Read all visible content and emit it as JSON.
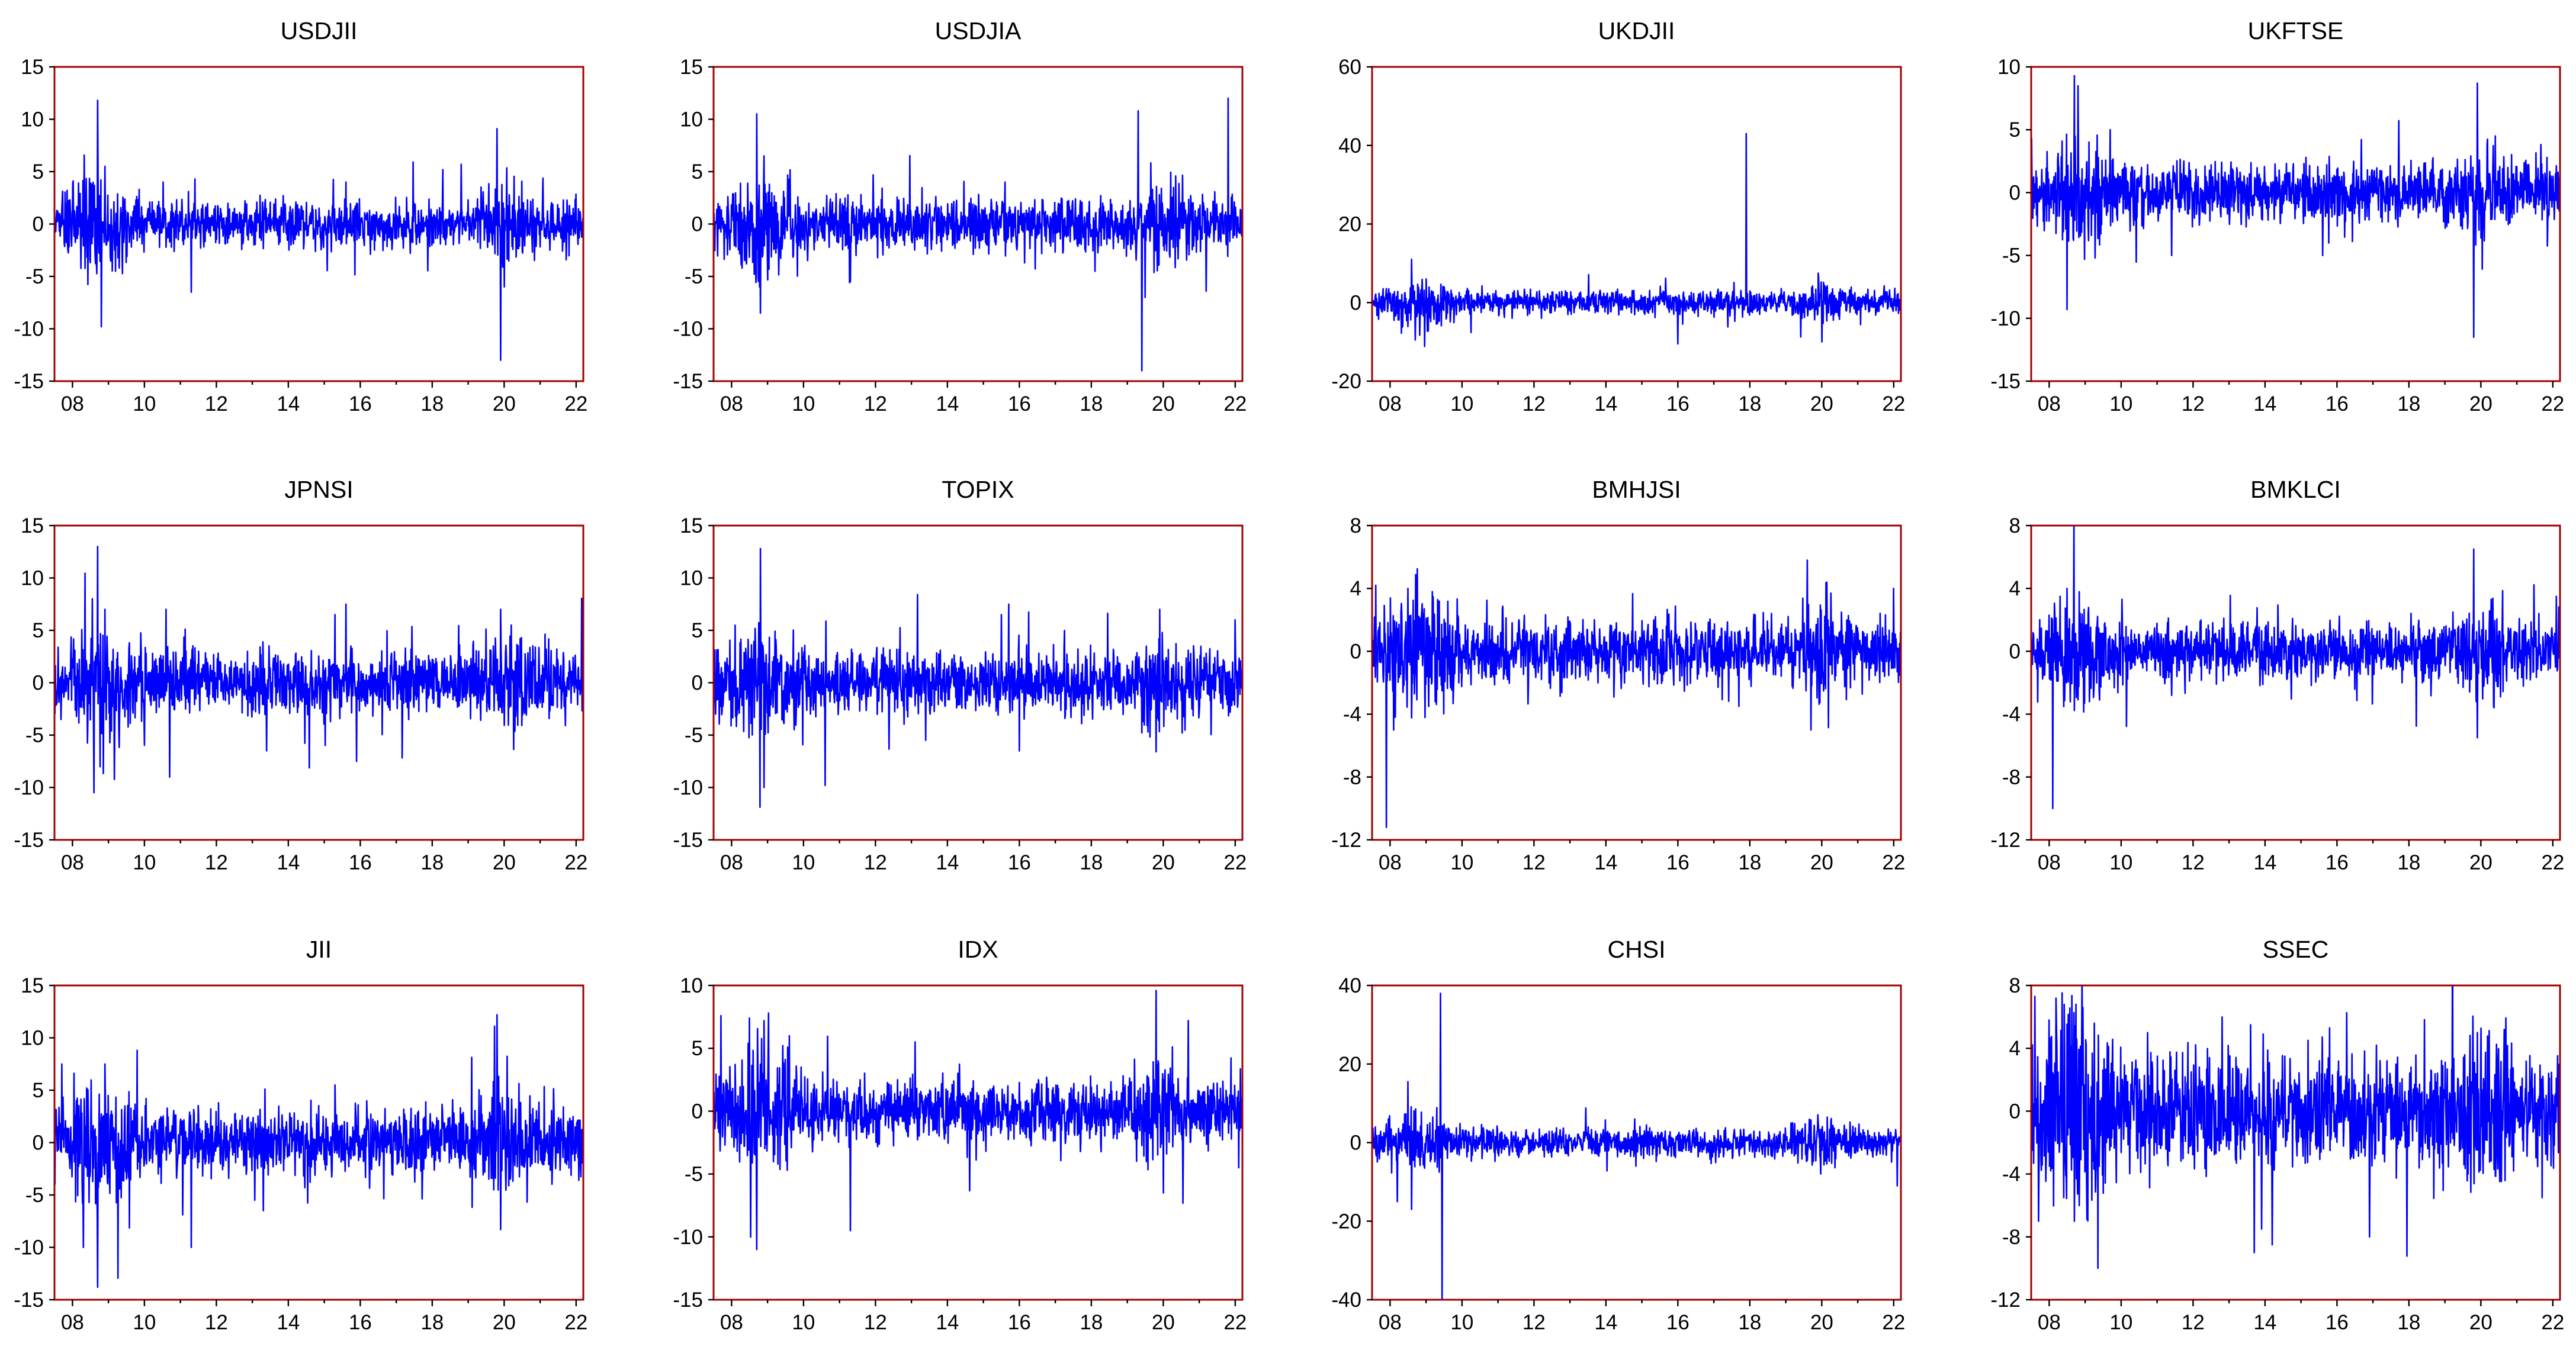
{
  "figure": {
    "series_color": "#0000ff",
    "frame_color": "#a00000",
    "x_ticks": [
      "08",
      "10",
      "12",
      "14",
      "16",
      "18",
      "20",
      "22"
    ]
  },
  "chart_data": [
    {
      "type": "line",
      "title": "USDJII",
      "ylim": [
        -15,
        15
      ],
      "yticks": [
        -15,
        -10,
        -5,
        0,
        5,
        10,
        15
      ],
      "xlim": [
        2007.5,
        2022.2
      ],
      "base_amplitude": 1.0,
      "overall_max": 11.8,
      "overall_min": -13.0,
      "spikes": [
        [
          2008.7,
          11.8
        ],
        [
          2008.8,
          -9.8
        ],
        [
          2008.9,
          5.5
        ],
        [
          2009.2,
          -4.5
        ],
        [
          2011.3,
          -6.5
        ],
        [
          2011.4,
          4.3
        ],
        [
          2015.6,
          4.0
        ],
        [
          2018.3,
          5.2
        ],
        [
          2019.8,
          9.1
        ],
        [
          2019.9,
          -13.0
        ],
        [
          2020.0,
          -6.0
        ]
      ],
      "x": [
        2008,
        2010,
        2012,
        2014,
        2016,
        2018,
        2020,
        2022
      ]
    },
    {
      "type": "line",
      "title": "USDJIA",
      "ylim": [
        -15,
        15
      ],
      "yticks": [
        -15,
        -10,
        -5,
        0,
        5,
        10,
        15
      ],
      "xlim": [
        2007.5,
        2022.2
      ],
      "base_amplitude": 1.1,
      "overall_max": 12.0,
      "overall_min": -14.0,
      "spikes": [
        [
          2008.7,
          10.5
        ],
        [
          2008.8,
          -8.5
        ],
        [
          2008.9,
          6.5
        ],
        [
          2011.3,
          -5.5
        ],
        [
          2015.6,
          4.0
        ],
        [
          2018.1,
          -4.5
        ],
        [
          2019.3,
          10.8
        ],
        [
          2019.4,
          -14.0
        ],
        [
          2019.5,
          -7.0
        ],
        [
          2021.8,
          12.0
        ]
      ],
      "x": [
        2008,
        2010,
        2012,
        2014,
        2016,
        2018,
        2020,
        2022
      ]
    },
    {
      "type": "line",
      "title": "UKDJII",
      "ylim": [
        -20,
        60
      ],
      "yticks": [
        -20,
        0,
        20,
        40,
        60
      ],
      "xlim": [
        2007.5,
        2022.2
      ],
      "base_amplitude": 1.3,
      "overall_max": 43.0,
      "overall_min": -10.5,
      "spikes": [
        [
          2008.6,
          11.0
        ],
        [
          2008.7,
          -9.5
        ],
        [
          2009.0,
          6.0
        ],
        [
          2016.0,
          -10.5
        ],
        [
          2017.9,
          43.0
        ],
        [
          2019.9,
          7.5
        ],
        [
          2020.0,
          -10.0
        ]
      ],
      "x": [
        2008,
        2010,
        2012,
        2014,
        2016,
        2018,
        2020,
        2022
      ]
    },
    {
      "type": "line",
      "title": "UKFTSE",
      "ylim": [
        -15,
        10
      ],
      "yticks": [
        -15,
        -10,
        -5,
        0,
        5,
        10
      ],
      "xlim": [
        2007.5,
        2022.2
      ],
      "base_amplitude": 1.0,
      "overall_max": 9.3,
      "overall_min": -11.5,
      "spikes": [
        [
          2008.5,
          -9.3
        ],
        [
          2008.7,
          9.3
        ],
        [
          2008.8,
          8.5
        ],
        [
          2009.7,
          5.0
        ],
        [
          2011.4,
          -5.0
        ],
        [
          2015.6,
          -5.0
        ],
        [
          2019.8,
          -11.5
        ],
        [
          2019.9,
          8.7
        ],
        [
          2020.4,
          4.5
        ]
      ],
      "x": [
        2008,
        2010,
        2012,
        2014,
        2016,
        2018,
        2020,
        2022
      ]
    },
    {
      "type": "line",
      "title": "JPNSI",
      "ylim": [
        -15,
        15
      ],
      "yticks": [
        -15,
        -10,
        -5,
        0,
        5,
        10,
        15
      ],
      "xlim": [
        2007.5,
        2022.2
      ],
      "base_amplitude": 1.3,
      "overall_max": 13.0,
      "overall_min": -10.5,
      "spikes": [
        [
          2008.6,
          -10.5
        ],
        [
          2008.7,
          13.0
        ],
        [
          2008.9,
          7.0
        ],
        [
          2010.6,
          7.0
        ],
        [
          2010.7,
          -9.0
        ],
        [
          2013.4,
          -6.5
        ],
        [
          2015.3,
          6.5
        ],
        [
          2015.6,
          7.5
        ],
        [
          2015.9,
          -7.5
        ],
        [
          2019.9,
          7.0
        ],
        [
          2020.2,
          5.5
        ]
      ],
      "x": [
        2008,
        2010,
        2012,
        2014,
        2016,
        2018,
        2020,
        2022
      ]
    },
    {
      "type": "line",
      "title": "TOPIX",
      "ylim": [
        -15,
        15
      ],
      "yticks": [
        -15,
        -10,
        -5,
        0,
        5,
        10,
        15
      ],
      "xlim": [
        2007.5,
        2022.2
      ],
      "base_amplitude": 1.3,
      "overall_max": 12.8,
      "overall_min": -10.0,
      "spikes": [
        [
          2008.8,
          12.8
        ],
        [
          2008.9,
          -10.0
        ],
        [
          2010.6,
          -9.8
        ],
        [
          2013.4,
          -5.5
        ],
        [
          2015.5,
          6.5
        ],
        [
          2015.7,
          7.5
        ],
        [
          2016.0,
          -6.5
        ],
        [
          2019.9,
          7.0
        ],
        [
          2022.0,
          6.0
        ]
      ],
      "x": [
        2008,
        2010,
        2012,
        2014,
        2016,
        2018,
        2020,
        2022
      ]
    },
    {
      "type": "line",
      "title": "BMHJSI",
      "ylim": [
        -12,
        8
      ],
      "yticks": [
        -12,
        -8,
        -4,
        0,
        4,
        8
      ],
      "xlim": [
        2007.5,
        2022.2
      ],
      "base_amplitude": 0.9,
      "overall_max": 5.8,
      "overall_min": -11.2,
      "spikes": [
        [
          2007.6,
          4.2
        ],
        [
          2007.9,
          -11.2
        ],
        [
          2008.1,
          -5.0
        ],
        [
          2008.5,
          4.0
        ],
        [
          2017.7,
          -3.5
        ],
        [
          2019.6,
          5.8
        ],
        [
          2019.7,
          -5.0
        ],
        [
          2022.0,
          4.0
        ]
      ],
      "x": [
        2008,
        2010,
        2012,
        2014,
        2016,
        2018,
        2020,
        2022
      ]
    },
    {
      "type": "line",
      "title": "BMKLCI",
      "ylim": [
        -12,
        8
      ],
      "yticks": [
        -12,
        -8,
        -4,
        0,
        4,
        8
      ],
      "xlim": [
        2007.5,
        2022.2
      ],
      "base_amplitude": 0.8,
      "overall_max": 6.5,
      "overall_min": -10.0,
      "spikes": [
        [
          2008.1,
          -10.0
        ],
        [
          2008.3,
          3.5
        ],
        [
          2008.5,
          4.0
        ],
        [
          2011.4,
          -2.8
        ],
        [
          2019.8,
          6.5
        ],
        [
          2019.9,
          -5.5
        ],
        [
          2022.1,
          3.5
        ]
      ],
      "x": [
        2008,
        2010,
        2012,
        2014,
        2016,
        2018,
        2020,
        2022
      ]
    },
    {
      "type": "line",
      "title": "JII",
      "ylim": [
        -15,
        15
      ],
      "yticks": [
        -15,
        -10,
        -5,
        0,
        5,
        10,
        15
      ],
      "xlim": [
        2007.5,
        2022.2
      ],
      "base_amplitude": 1.4,
      "overall_max": 12.2,
      "overall_min": -13.8,
      "spikes": [
        [
          2007.7,
          7.5
        ],
        [
          2008.3,
          -10.0
        ],
        [
          2008.7,
          -13.8
        ],
        [
          2008.9,
          7.5
        ],
        [
          2009.8,
          8.8
        ],
        [
          2011.3,
          -10.0
        ],
        [
          2013.3,
          -6.5
        ],
        [
          2015.3,
          5.5
        ],
        [
          2019.8,
          12.2
        ],
        [
          2019.9,
          -8.3
        ]
      ],
      "x": [
        2008,
        2010,
        2012,
        2014,
        2016,
        2018,
        2020,
        2022
      ]
    },
    {
      "type": "line",
      "title": "IDX",
      "ylim": [
        -15,
        10
      ],
      "yticks": [
        -15,
        -10,
        -5,
        0,
        5,
        10
      ],
      "xlim": [
        2007.5,
        2022.2
      ],
      "base_amplitude": 1.1,
      "overall_max": 9.6,
      "overall_min": -11.0,
      "spikes": [
        [
          2007.7,
          7.6
        ],
        [
          2008.5,
          7.4
        ],
        [
          2008.7,
          -11.0
        ],
        [
          2008.9,
          7.2
        ],
        [
          2009.6,
          6.0
        ],
        [
          2011.3,
          -9.5
        ],
        [
          2013.1,
          5.5
        ],
        [
          2019.8,
          9.6
        ],
        [
          2020.0,
          -6.5
        ],
        [
          2022.1,
          -4.5
        ]
      ],
      "x": [
        2008,
        2010,
        2012,
        2014,
        2016,
        2018,
        2020,
        2022
      ]
    },
    {
      "type": "line",
      "title": "CHSI",
      "ylim": [
        -40,
        40
      ],
      "yticks": [
        -40,
        -20,
        0,
        20,
        40
      ],
      "xlim": [
        2007.5,
        2022.2
      ],
      "base_amplitude": 1.5,
      "overall_max": 38.0,
      "overall_min": -40.0,
      "spikes": [
        [
          2008.2,
          -15.0
        ],
        [
          2008.5,
          15.5
        ],
        [
          2008.6,
          -17.0
        ],
        [
          2009.4,
          38.0
        ],
        [
          2009.45,
          -40.0
        ],
        [
          2014.8,
          6.0
        ],
        [
          2019.9,
          5.0
        ],
        [
          2022.1,
          -11.0
        ]
      ],
      "x": [
        2008,
        2010,
        2012,
        2014,
        2016,
        2018,
        2020,
        2022
      ]
    },
    {
      "type": "line",
      "title": "SSEC",
      "ylim": [
        -12,
        8
      ],
      "yticks": [
        -12,
        -8,
        -4,
        0,
        4,
        8
      ],
      "xlim": [
        2007.5,
        2022.2
      ],
      "base_amplitude": 1.6,
      "overall_max": 7.3,
      "overall_min": -9.0,
      "spikes": [
        [
          2007.6,
          7.3
        ],
        [
          2007.7,
          -7.0
        ],
        [
          2008.0,
          5.8
        ],
        [
          2008.4,
          -5.5
        ],
        [
          2008.7,
          -7.0
        ],
        [
          2013.6,
          5.5
        ],
        [
          2013.7,
          -9.0
        ],
        [
          2013.9,
          -7.5
        ],
        [
          2014.2,
          -8.5
        ],
        [
          2015.8,
          5.3
        ],
        [
          2016.9,
          -8.0
        ],
        [
          2019.9,
          5.0
        ],
        [
          2021.7,
          -5.5
        ]
      ],
      "x": [
        2008,
        2010,
        2012,
        2014,
        2016,
        2018,
        2020,
        2022
      ]
    }
  ]
}
